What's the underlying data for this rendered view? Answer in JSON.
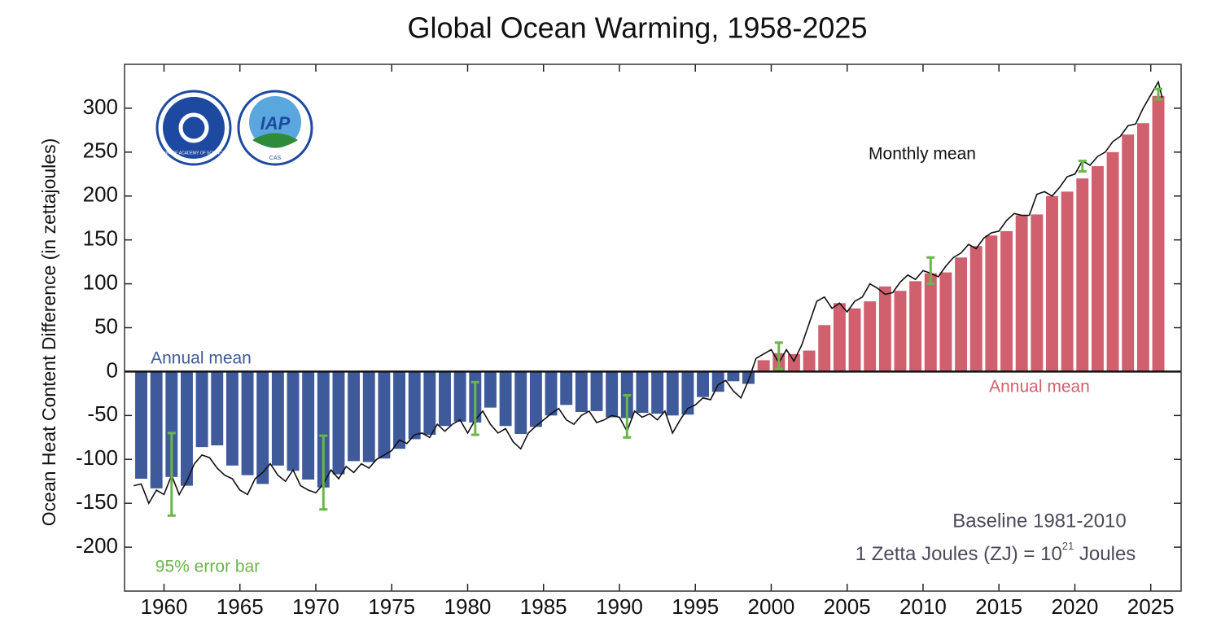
{
  "chart_data": {
    "type": "bar",
    "title": "Global Ocean Warming, 1958-2025",
    "y_label": "Ocean Heat Content Difference (in zettajoules)",
    "xlim": [
      1957.4,
      2027
    ],
    "xticks": [
      1960,
      1965,
      1970,
      1975,
      1980,
      1985,
      1990,
      1995,
      2000,
      2005,
      2010,
      2015,
      2020,
      2025
    ],
    "ylim": [
      -250,
      350
    ],
    "yticks": [
      -200,
      -150,
      -100,
      -50,
      0,
      50,
      100,
      150,
      200,
      250,
      300
    ],
    "x": [
      1958,
      1959,
      1960,
      1961,
      1962,
      1963,
      1964,
      1965,
      1966,
      1967,
      1968,
      1969,
      1970,
      1971,
      1972,
      1973,
      1974,
      1975,
      1976,
      1977,
      1978,
      1979,
      1980,
      1981,
      1982,
      1983,
      1984,
      1985,
      1986,
      1987,
      1988,
      1989,
      1990,
      1991,
      1992,
      1993,
      1994,
      1995,
      1996,
      1997,
      1998,
      1999,
      2000,
      2001,
      2002,
      2003,
      2004,
      2005,
      2006,
      2007,
      2008,
      2009,
      2010,
      2011,
      2012,
      2013,
      2014,
      2015,
      2016,
      2017,
      2018,
      2019,
      2020,
      2021,
      2022,
      2023,
      2024,
      2025
    ],
    "series": [
      {
        "name": "Annual mean",
        "color": "#3f5a9a",
        "values": [
          -122,
          -133,
          -120,
          -130,
          -86,
          -84,
          -107,
          -118,
          -128,
          -107,
          -113,
          -123,
          -132,
          -117,
          -102,
          -103,
          -99,
          -88,
          -77,
          -72,
          -62,
          -57,
          -58,
          -41,
          -62,
          -71,
          -63,
          -50,
          -38,
          -46,
          -45,
          -52,
          -53,
          -47,
          -48,
          -50,
          -49,
          -29,
          -23,
          -11,
          -14,
          null,
          null,
          null,
          null,
          null,
          null,
          null,
          null,
          null,
          null,
          null,
          null,
          null,
          null,
          null,
          null,
          null,
          null,
          null,
          null,
          null,
          null,
          null,
          null,
          null,
          null,
          null
        ]
      },
      {
        "name": "Annual mean",
        "color": "#d1606e",
        "values": [
          null,
          null,
          null,
          null,
          null,
          null,
          null,
          null,
          null,
          null,
          null,
          null,
          null,
          null,
          null,
          null,
          null,
          null,
          null,
          null,
          null,
          null,
          null,
          null,
          null,
          null,
          null,
          null,
          null,
          null,
          null,
          null,
          null,
          null,
          null,
          null,
          null,
          null,
          null,
          null,
          null,
          13,
          21,
          20,
          24,
          53,
          78,
          72,
          80,
          97,
          92,
          103,
          112,
          113,
          130,
          143,
          155,
          160,
          178,
          179,
          200,
          205,
          220,
          234,
          250,
          270,
          283,
          314
        ]
      }
    ],
    "monthly": {
      "name": "Monthly mean",
      "color": "#111111",
      "x": [
        1958.0,
        1958.5,
        1959.0,
        1959.5,
        1960.0,
        1960.5,
        1961.0,
        1961.5,
        1962.0,
        1962.5,
        1963.0,
        1963.5,
        1964.0,
        1964.5,
        1965.0,
        1965.5,
        1966.0,
        1966.5,
        1967.0,
        1967.5,
        1968.0,
        1968.5,
        1969.0,
        1969.5,
        1970.0,
        1970.5,
        1971.0,
        1971.5,
        1972.0,
        1972.5,
        1973.0,
        1973.5,
        1974.0,
        1974.5,
        1975.0,
        1975.5,
        1976.0,
        1976.5,
        1977.0,
        1977.5,
        1978.0,
        1978.5,
        1979.0,
        1979.5,
        1980.0,
        1980.5,
        1981.0,
        1981.5,
        1982.0,
        1982.5,
        1983.0,
        1983.5,
        1984.0,
        1984.5,
        1985.0,
        1985.5,
        1986.0,
        1986.5,
        1987.0,
        1987.5,
        1988.0,
        1988.5,
        1989.0,
        1989.5,
        1990.0,
        1990.5,
        1991.0,
        1991.5,
        1992.0,
        1992.5,
        1993.0,
        1993.5,
        1994.0,
        1994.5,
        1995.0,
        1995.5,
        1996.0,
        1996.5,
        1997.0,
        1997.5,
        1998.0,
        1998.5,
        1999.0,
        1999.5,
        2000.0,
        2000.5,
        2001.0,
        2001.5,
        2002.0,
        2002.5,
        2003.0,
        2003.5,
        2004.0,
        2004.5,
        2005.0,
        2005.5,
        2006.0,
        2006.5,
        2007.0,
        2007.5,
        2008.0,
        2008.5,
        2009.0,
        2009.5,
        2010.0,
        2010.5,
        2011.0,
        2011.5,
        2012.0,
        2012.5,
        2013.0,
        2013.5,
        2014.0,
        2014.5,
        2015.0,
        2015.5,
        2016.0,
        2016.5,
        2017.0,
        2017.5,
        2018.0,
        2018.5,
        2019.0,
        2019.5,
        2020.0,
        2020.5,
        2021.0,
        2021.5,
        2022.0,
        2022.5,
        2023.0,
        2023.5,
        2024.0,
        2024.5,
        2025.0,
        2025.5,
        2025.75
      ],
      "values": [
        -130,
        -128,
        -150,
        -135,
        -140,
        -118,
        -140,
        -125,
        -105,
        -95,
        -98,
        -110,
        -118,
        -122,
        -135,
        -140,
        -122,
        -115,
        -105,
        -118,
        -125,
        -112,
        -130,
        -135,
        -138,
        -128,
        -112,
        -122,
        -108,
        -115,
        -105,
        -110,
        -100,
        -95,
        -90,
        -78,
        -82,
        -72,
        -70,
        -75,
        -60,
        -68,
        -60,
        -55,
        -70,
        -55,
        -45,
        -60,
        -70,
        -65,
        -80,
        -88,
        -70,
        -62,
        -55,
        -48,
        -42,
        -55,
        -60,
        -50,
        -45,
        -58,
        -55,
        -50,
        -52,
        -68,
        -45,
        -52,
        -48,
        -55,
        -45,
        -70,
        -55,
        -42,
        -38,
        -30,
        -32,
        -15,
        -10,
        -22,
        -30,
        -10,
        15,
        20,
        25,
        10,
        25,
        12,
        30,
        55,
        80,
        85,
        72,
        78,
        68,
        80,
        85,
        100,
        95,
        88,
        90,
        102,
        110,
        105,
        115,
        112,
        108,
        120,
        130,
        135,
        145,
        140,
        152,
        158,
        160,
        172,
        180,
        178,
        178,
        202,
        205,
        200,
        210,
        222,
        225,
        240,
        235,
        245,
        250,
        262,
        268,
        280,
        282,
        300,
        315,
        330,
        312
      ]
    },
    "error_bars": {
      "name": "95% error bar",
      "color": "#6ab64a",
      "x": [
        1960.5,
        1970.5,
        1980.5,
        1990.5,
        2000.5,
        2010.5,
        2020.5,
        2025.5
      ],
      "values": [
        -117,
        -115,
        -42,
        -51,
        18,
        115,
        234,
        316
      ],
      "errors": [
        47,
        42,
        30,
        24,
        15,
        15,
        6,
        6
      ]
    },
    "annotations": {
      "baseline": "Baseline 1981-2010",
      "unit_main": "1 Zetta Joules (ZJ) = 10",
      "unit_exp": "21",
      "unit_tail": " Joules"
    },
    "logos": [
      {
        "label": "CHINESE ACADEMY OF SCIENCES"
      },
      {
        "label": "IAP",
        "sublabel": "CAS"
      }
    ]
  }
}
